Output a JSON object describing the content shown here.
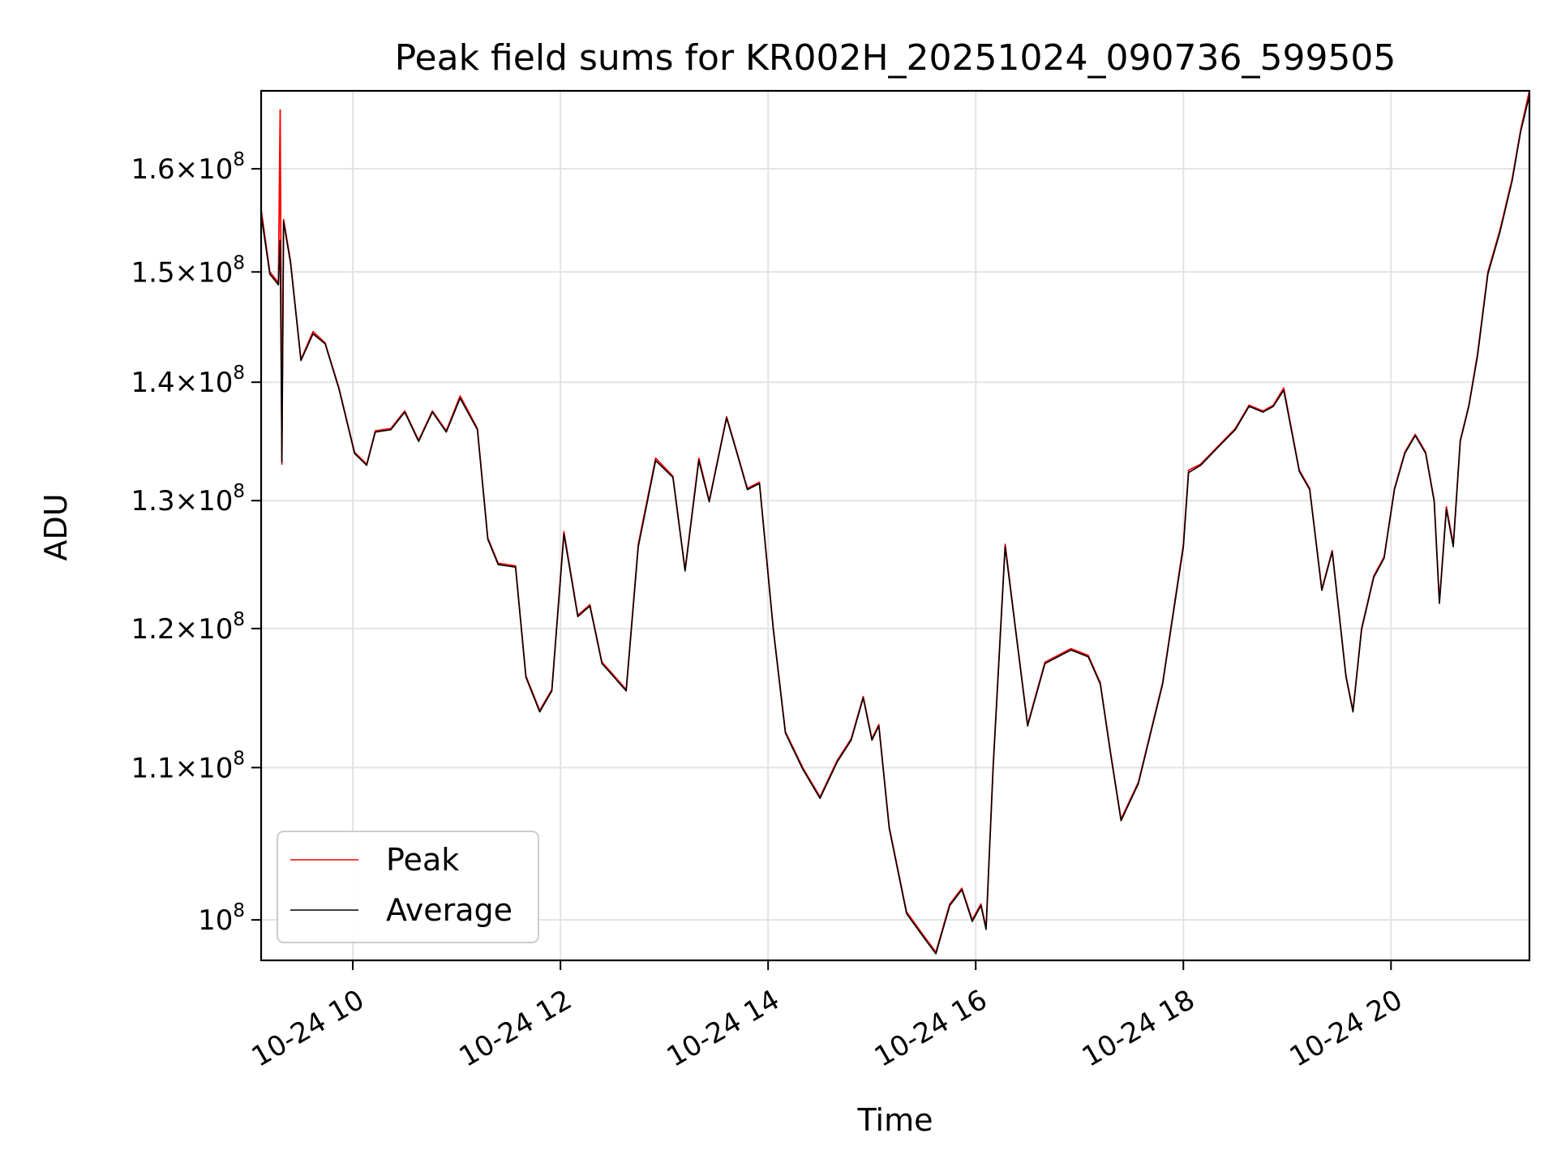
{
  "chart_data": {
    "type": "line",
    "title": "Peak field sums for KR002H_20251024_090736_599505",
    "xlabel": "Time",
    "ylabel": "ADU",
    "y_scale": "log",
    "ylim": [
      97500000,
      168000000
    ],
    "xlim": [
      "2025-10-24 09:07",
      "2025-10-24 21:20"
    ],
    "grid": true,
    "legend_position": "lower-left",
    "x_ticks": [
      {
        "value": "2025-10-24 10:00",
        "label": "10-24 10"
      },
      {
        "value": "2025-10-24 12:00",
        "label": "10-24 12"
      },
      {
        "value": "2025-10-24 14:00",
        "label": "10-24 14"
      },
      {
        "value": "2025-10-24 16:00",
        "label": "10-24 16"
      },
      {
        "value": "2025-10-24 18:00",
        "label": "10-24 18"
      },
      {
        "value": "2025-10-24 20:00",
        "label": "10-24 20"
      }
    ],
    "y_ticks": [
      {
        "value": 100000000,
        "mantissa": "",
        "exponent": "8"
      },
      {
        "value": 110000000,
        "mantissa": "1.1",
        "exponent": "8"
      },
      {
        "value": 120000000,
        "mantissa": "1.2",
        "exponent": "8"
      },
      {
        "value": 130000000,
        "mantissa": "1.3",
        "exponent": "8"
      },
      {
        "value": 140000000,
        "mantissa": "1.4",
        "exponent": "8"
      },
      {
        "value": 150000000,
        "mantissa": "1.5",
        "exponent": "8"
      },
      {
        "value": 160000000,
        "mantissa": "1.6",
        "exponent": "8"
      }
    ],
    "x": [
      "2025-10-24 09:07",
      "2025-10-24 09:12",
      "2025-10-24 09:17",
      "2025-10-24 09:18",
      "2025-10-24 09:19",
      "2025-10-24 09:20",
      "2025-10-24 09:24",
      "2025-10-24 09:30",
      "2025-10-24 09:37",
      "2025-10-24 09:44",
      "2025-10-24 09:52",
      "2025-10-24 10:01",
      "2025-10-24 10:08",
      "2025-10-24 10:13",
      "2025-10-24 10:22",
      "2025-10-24 10:30",
      "2025-10-24 10:38",
      "2025-10-24 10:46",
      "2025-10-24 10:54",
      "2025-10-24 11:02",
      "2025-10-24 11:12",
      "2025-10-24 11:18",
      "2025-10-24 11:24",
      "2025-10-24 11:34",
      "2025-10-24 11:40",
      "2025-10-24 11:48",
      "2025-10-24 11:55",
      "2025-10-24 12:02",
      "2025-10-24 12:10",
      "2025-10-24 12:17",
      "2025-10-24 12:24",
      "2025-10-24 12:31",
      "2025-10-24 12:38",
      "2025-10-24 12:45",
      "2025-10-24 12:55",
      "2025-10-24 13:05",
      "2025-10-24 13:12",
      "2025-10-24 13:20",
      "2025-10-24 13:26",
      "2025-10-24 13:36",
      "2025-10-24 13:42",
      "2025-10-24 13:48",
      "2025-10-24 13:55",
      "2025-10-24 14:03",
      "2025-10-24 14:10",
      "2025-10-24 14:20",
      "2025-10-24 14:30",
      "2025-10-24 14:40",
      "2025-10-24 14:48",
      "2025-10-24 14:55",
      "2025-10-24 15:00",
      "2025-10-24 15:04",
      "2025-10-24 15:10",
      "2025-10-24 15:20",
      "2025-10-24 15:30",
      "2025-10-24 15:37",
      "2025-10-24 15:45",
      "2025-10-24 15:52",
      "2025-10-24 15:58",
      "2025-10-24 16:03",
      "2025-10-24 16:06",
      "2025-10-24 16:10",
      "2025-10-24 16:17",
      "2025-10-24 16:23",
      "2025-10-24 16:30",
      "2025-10-24 16:40",
      "2025-10-24 16:55",
      "2025-10-24 17:05",
      "2025-10-24 17:12",
      "2025-10-24 17:18",
      "2025-10-24 17:24",
      "2025-10-24 17:34",
      "2025-10-24 17:48",
      "2025-10-24 18:00",
      "2025-10-24 18:03",
      "2025-10-24 18:10",
      "2025-10-24 18:20",
      "2025-10-24 18:30",
      "2025-10-24 18:38",
      "2025-10-24 18:46",
      "2025-10-24 18:52",
      "2025-10-24 18:58",
      "2025-10-24 19:07",
      "2025-10-24 19:13",
      "2025-10-24 19:20",
      "2025-10-24 19:26",
      "2025-10-24 19:34",
      "2025-10-24 19:38",
      "2025-10-24 19:43",
      "2025-10-24 19:50",
      "2025-10-24 19:56",
      "2025-10-24 20:02",
      "2025-10-24 20:08",
      "2025-10-24 20:14",
      "2025-10-24 20:20",
      "2025-10-24 20:25",
      "2025-10-24 20:28",
      "2025-10-24 20:32",
      "2025-10-24 20:36",
      "2025-10-24 20:40",
      "2025-10-24 20:45",
      "2025-10-24 20:50",
      "2025-10-24 20:56",
      "2025-10-24 21:03",
      "2025-10-24 21:10",
      "2025-10-24 21:15",
      "2025-10-24 21:20"
    ],
    "series": [
      {
        "name": "Peak",
        "color": "#ff0000",
        "values": [
          156000000,
          150000000,
          149000000,
          166000000,
          133000000,
          155000000,
          151000000,
          142000000,
          144500000,
          143500000,
          139500000,
          134000000,
          133000000,
          135800000,
          136000000,
          137500000,
          135000000,
          137500000,
          135800000,
          138800000,
          136000000,
          127000000,
          125000000,
          124800000,
          116500000,
          114000000,
          115500000,
          127500000,
          121000000,
          121800000,
          117500000,
          116500000,
          115500000,
          126500000,
          133500000,
          132000000,
          124500000,
          133500000,
          130000000,
          137000000,
          134000000,
          131000000,
          131500000,
          120000000,
          112500000,
          110000000,
          108000000,
          110500000,
          112000000,
          115000000,
          112000000,
          113000000,
          106000000,
          100500000,
          99000000,
          98000000,
          101000000,
          102000000,
          100000000,
          101000000,
          99500000,
          110000000,
          126500000,
          120000000,
          113000000,
          117500000,
          118500000,
          118000000,
          116000000,
          111000000,
          106500000,
          109000000,
          116000000,
          126500000,
          132500000,
          133000000,
          134500000,
          136000000,
          138000000,
          137500000,
          138000000,
          139500000,
          132500000,
          131000000,
          123000000,
          126000000,
          116500000,
          114000000,
          120000000,
          124000000,
          125500000,
          131000000,
          134000000,
          135500000,
          134000000,
          130000000,
          122000000,
          129500000,
          126500000,
          135000000,
          138000000,
          142500000,
          150000000,
          154000000,
          159000000,
          164000000,
          168000000
        ]
      },
      {
        "name": "Average",
        "color": "#000000",
        "values": [
          155500000,
          149800000,
          148800000,
          153000000,
          133200000,
          154800000,
          150800000,
          141900000,
          144300000,
          143400000,
          139400000,
          133900000,
          132900000,
          135700000,
          135900000,
          137400000,
          134900000,
          137400000,
          135700000,
          138600000,
          135900000,
          126900000,
          124900000,
          124700000,
          116400000,
          113900000,
          115400000,
          127300000,
          120900000,
          121700000,
          117400000,
          116400000,
          115400000,
          126300000,
          133300000,
          131900000,
          124400000,
          133300000,
          129900000,
          136900000,
          133900000,
          130900000,
          131400000,
          119900000,
          112400000,
          109900000,
          107900000,
          110400000,
          111900000,
          114900000,
          111900000,
          112900000,
          105900000,
          100400000,
          98900000,
          97900000,
          100900000,
          101900000,
          99900000,
          100900000,
          99400000,
          109900000,
          126300000,
          119900000,
          112900000,
          117400000,
          118400000,
          117900000,
          115900000,
          110900000,
          106400000,
          108900000,
          115900000,
          126300000,
          132300000,
          132900000,
          134400000,
          135900000,
          137900000,
          137400000,
          137900000,
          139300000,
          132400000,
          130900000,
          122900000,
          125900000,
          116400000,
          113900000,
          119900000,
          123900000,
          125400000,
          130900000,
          133900000,
          135400000,
          133900000,
          129900000,
          121900000,
          129300000,
          126300000,
          134900000,
          137900000,
          142300000,
          149800000,
          153800000,
          158800000,
          163800000,
          167500000
        ]
      }
    ]
  }
}
